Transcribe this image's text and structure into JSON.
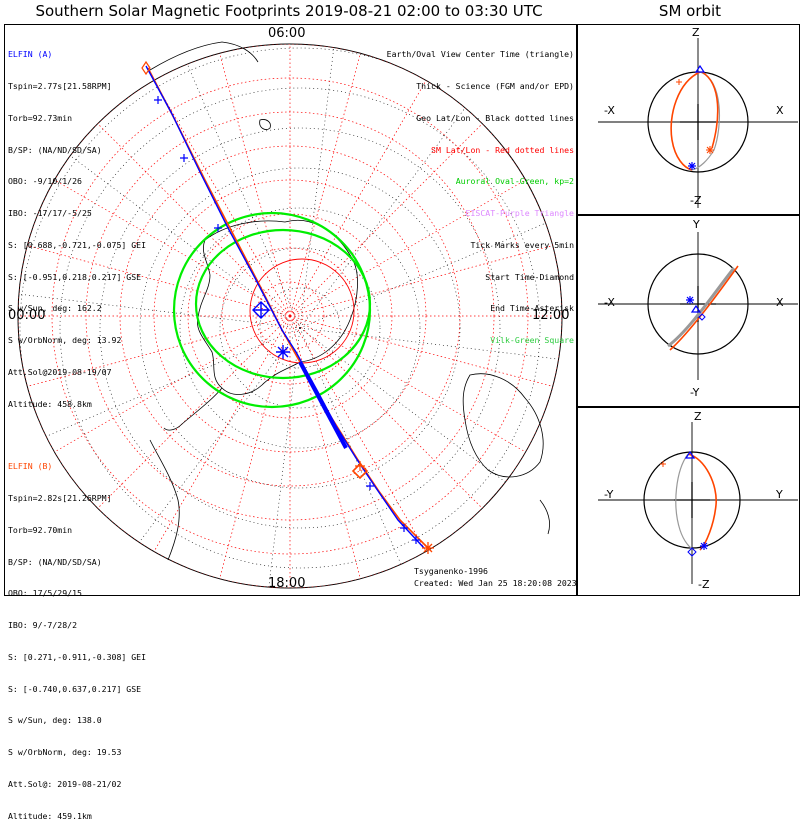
{
  "header": {
    "title": "Southern Solar Magnetic Footprints 2019-08-21 02:00 to 03:30 UTC",
    "sm_title": "SM orbit"
  },
  "colors": {
    "elfin_a": "#0000ff",
    "elfin_b": "#ff4500",
    "sm_grid": "#ff0000",
    "geo_grid": "#000000",
    "auroral_oval": "#00ff00",
    "eiscat": "#dd88ff",
    "lshell": "#2ecc40"
  },
  "elfin_a": {
    "name": "ELFIN (A)",
    "lines": [
      "Tspin=2.77s[21.58RPM]",
      "Torb=92.73min",
      "B/SP: (NA/ND/SD/SA)",
      "OBO: -9/10/1/26",
      "IBO: -17/17/-5/25",
      "S: [0.688,-0.721,-0.075] GEI",
      "S: [-0.951,0.218,0.217] GSE",
      "S w/Sun, deg: 162.2",
      "S w/OrbNorm, deg: 13.92",
      "Att.Sol@2019-08-19/07",
      "Altitude: 458.8km"
    ]
  },
  "elfin_b": {
    "name": "ELFIN (B)",
    "lines": [
      "Tspin=2.82s[21.26RPM]",
      "Torb=92.70min",
      "B/SP: (NA/ND/SD/SA)",
      "OBO: 17/5/29/15",
      "IBO: 9/-7/28/2",
      "S: [0.271,-0.911,-0.308] GEI",
      "S: [-0.740,0.637,0.217] GSE",
      "S w/Sun, deg: 138.0",
      "S w/OrbNorm, deg: 19.53",
      "Att.Sol@: 2019-08-21/02",
      "Altitude: 459.1km"
    ]
  },
  "legend": {
    "items": [
      {
        "text": "Earth/Oval View Center Time (triangle)",
        "color": "#000000"
      },
      {
        "text": "Thick - Science (FGM and/or EPD)",
        "color": "#000000"
      },
      {
        "text": "Geo Lat/Lon - Black dotted lines",
        "color": "#000000"
      },
      {
        "text": "SM Lat/Lon - Red dotted lines",
        "color": "#ff0000"
      },
      {
        "text": "Auroral Oval-Green, kp=2",
        "color": "#00cc00"
      },
      {
        "text": "EISCAT-Purple Triangle",
        "color": "#dd88ff"
      },
      {
        "text": "Tick Marks every 5min",
        "color": "#000000"
      },
      {
        "text": "Start Time-Diamond",
        "color": "#000000"
      },
      {
        "text": "End Time-Asterisk",
        "color": "#000000"
      },
      {
        "text": "Vilk-Green Square",
        "color": "#2ecc40"
      }
    ]
  },
  "local_time_labels": {
    "top": "06:00",
    "left": "00:00",
    "right": "12:00",
    "bottom": "18:00"
  },
  "footer": {
    "credit": "Tsyganenko-1996",
    "created": "Created: Wed Jan 25 18:20:08 2023"
  },
  "sm_panels": [
    {
      "up": "Z",
      "down": "-Z",
      "left": "-X",
      "right": "X"
    },
    {
      "up": "Y",
      "down": "-Y",
      "left": "-X",
      "right": "X"
    },
    {
      "up": "Z",
      "down": "-Z",
      "left": "-Y",
      "right": "Y"
    }
  ]
}
